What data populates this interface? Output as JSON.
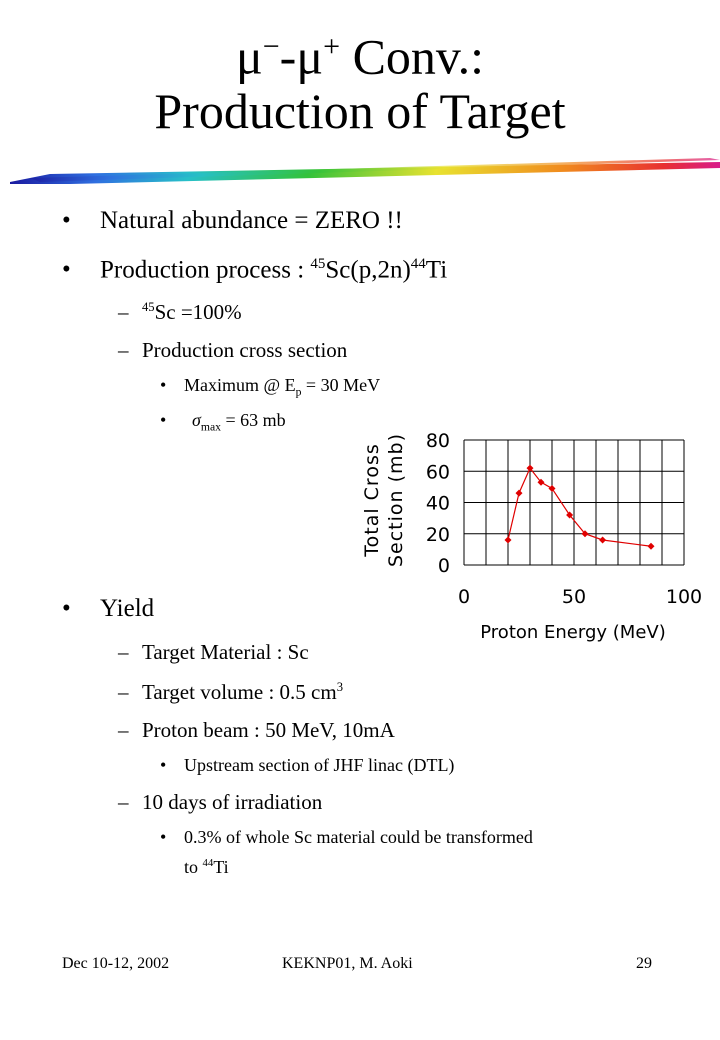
{
  "title": {
    "mu_minus": "μ",
    "minus_sign": "−",
    "dash": "-",
    "mu_plus": "μ",
    "plus_sign": "+",
    "conv": " Conv.:",
    "line2": "Production of Target"
  },
  "bullets": {
    "b1": {
      "marker": "•",
      "text": "Natural abundance = ZERO !!"
    },
    "b2": {
      "marker": "•",
      "prefix": "Production process : ",
      "sup1": "45",
      "mid": "Sc(p,2n)",
      "sup2": "44",
      "suffix": "Ti"
    },
    "b2a": {
      "marker": "–",
      "sup": "45",
      "text": "Sc =100%"
    },
    "b2b": {
      "marker": "–",
      "text": "Production cross section"
    },
    "b2b1": {
      "marker": "•",
      "prefix": "Maximum @ E",
      "sub": "p",
      "suffix": " = 30 MeV"
    },
    "b2b2": {
      "marker": "•",
      "sigma": "σ",
      "sub": "max",
      "suffix": " = 63 mb"
    },
    "b3": {
      "marker": "•",
      "text": "Yield"
    },
    "b3a": {
      "marker": "–",
      "text": "Target Material : Sc"
    },
    "b3b": {
      "marker": "–",
      "text": "Target volume : 0.5 cm",
      "sup": "3"
    },
    "b3c": {
      "marker": "–",
      "text": "Proton beam : 50 MeV, 10mA"
    },
    "b3c1": {
      "marker": "•",
      "text": "Upstream section of JHF linac (DTL)"
    },
    "b3d": {
      "marker": "–",
      "text": "10 days of irradiation"
    },
    "b3d1": {
      "marker": "•",
      "line1": "0.3% of whole Sc material could be transformed",
      "line2_prefix": "to ",
      "sup": "44",
      "line2_suffix": "Ti"
    }
  },
  "footer": {
    "date": "Dec 10-12, 2002",
    "author": "KEKNP01, M. Aoki",
    "page": "29"
  },
  "chart_data": {
    "type": "line",
    "xlabel": "Proton Energy (MeV)",
    "ylabel_line1": "Total Cross",
    "ylabel_line2": "Section (mb)",
    "xlim": [
      0,
      100
    ],
    "ylim": [
      0,
      80
    ],
    "xticks": [
      0,
      50,
      100
    ],
    "yticks": [
      0,
      20,
      40,
      60,
      80
    ],
    "grid": true,
    "x": [
      20,
      25,
      30,
      35,
      40,
      48,
      55,
      63,
      85
    ],
    "y": [
      16,
      46,
      62,
      53,
      49,
      32,
      20,
      16,
      12
    ],
    "marker_color": "#e00000",
    "line_color": "#e00000"
  }
}
